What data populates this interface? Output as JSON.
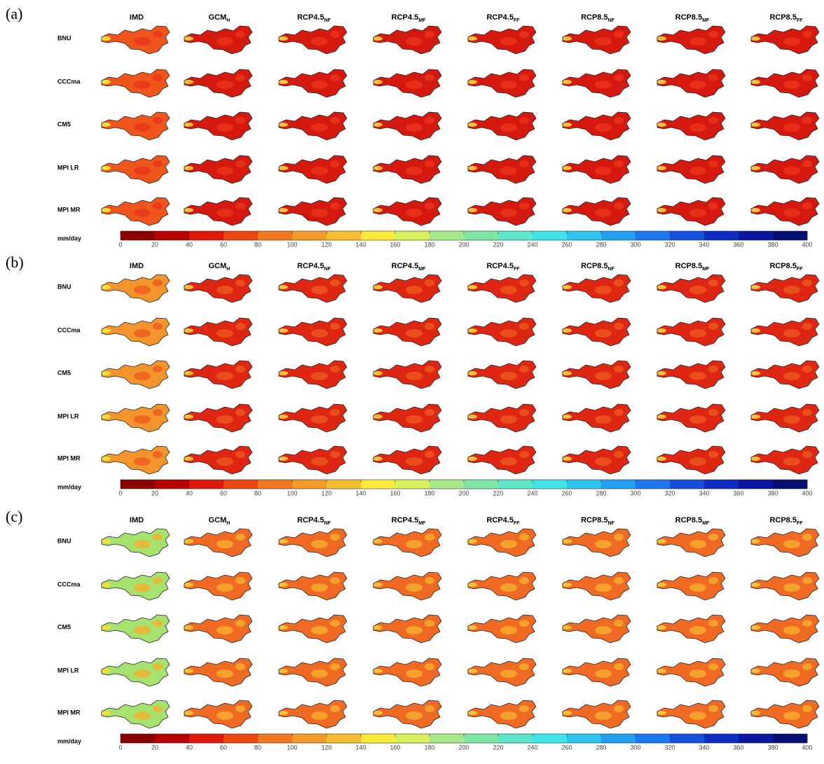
{
  "panels": [
    {
      "label": "(a)",
      "columns": [
        {
          "text": "IMD"
        },
        {
          "text": "GCM",
          "sub": "H"
        },
        {
          "text": "RCP4.5",
          "sub": "NF"
        },
        {
          "text": "RCP4.5",
          "sub": "MF"
        },
        {
          "text": "RCP4.5",
          "sub": "FF"
        },
        {
          "text": "RCP8.5",
          "sub": "NF"
        },
        {
          "text": "RCP8.5",
          "sub": "MF"
        },
        {
          "text": "RCP8.5",
          "sub": "FF"
        }
      ],
      "rows": [
        "BNU",
        "CCCma",
        "CM5",
        "MPI LR",
        "MPI MR"
      ],
      "map_fill": {
        "reference": "#f0561c",
        "models": "#d6190f",
        "spot": "#e8341a"
      },
      "colorbar": {
        "unit": "mm/day",
        "lim": [
          0,
          400
        ],
        "ticks": [
          0,
          20,
          40,
          60,
          80,
          100,
          120,
          140,
          160,
          180,
          200,
          220,
          240,
          260,
          280,
          300,
          320,
          340,
          360,
          380,
          400
        ]
      }
    },
    {
      "label": "(b)",
      "columns": [
        {
          "text": "IMD"
        },
        {
          "text": "GCM",
          "sub": "H"
        },
        {
          "text": "RCP4.5",
          "sub": "NF"
        },
        {
          "text": "RCP4.5",
          "sub": "MF"
        },
        {
          "text": "RCP4.5",
          "sub": "FF"
        },
        {
          "text": "RCP8.5",
          "sub": "NF"
        },
        {
          "text": "RCP8.5",
          "sub": "MF"
        },
        {
          "text": "RCP8.5",
          "sub": "FF"
        }
      ],
      "rows": [
        "BNU",
        "CCCma",
        "CM5",
        "MPI LR",
        "MPI MR"
      ],
      "map_fill": {
        "reference": "#f3952c",
        "models": "#de2613",
        "spot": "#ec5a1e"
      },
      "colorbar": {
        "unit": "mm/day",
        "lim": [
          0,
          400
        ],
        "ticks": [
          0,
          20,
          40,
          60,
          80,
          100,
          120,
          140,
          160,
          180,
          200,
          220,
          240,
          260,
          280,
          300,
          320,
          340,
          360,
          380,
          400
        ]
      }
    },
    {
      "label": "(c)",
      "columns": [
        {
          "text": "IMD"
        },
        {
          "text": "GCM",
          "sub": "H"
        },
        {
          "text": "RCP4.5",
          "sub": "NF"
        },
        {
          "text": "RCP4.5",
          "sub": "MF"
        },
        {
          "text": "RCP4.5",
          "sub": "FF"
        },
        {
          "text": "RCP8.5",
          "sub": "NF"
        },
        {
          "text": "RCP8.5",
          "sub": "MF"
        },
        {
          "text": "RCP8.5",
          "sub": "FF"
        }
      ],
      "rows": [
        "BNU",
        "CCCma",
        "CM5",
        "MPI LR",
        "MPI MR"
      ],
      "map_fill": {
        "reference": "#a6e26e",
        "models": "#f06a24",
        "spot": "#f5b02e"
      },
      "colorbar": {
        "unit": "mm/day",
        "lim": [
          0,
          400
        ],
        "ticks": [
          0,
          20,
          40,
          60,
          80,
          100,
          120,
          140,
          160,
          180,
          200,
          220,
          240,
          260,
          280,
          300,
          320,
          340,
          360,
          380,
          400
        ]
      }
    }
  ],
  "colormap": [
    "#8b0000",
    "#b80000",
    "#e01a0a",
    "#ea4a12",
    "#f07820",
    "#f49a28",
    "#f7bd30",
    "#fde93a",
    "#d8f060",
    "#a6e88a",
    "#7fe6a6",
    "#5ee6c8",
    "#40e4e6",
    "#2fc4ee",
    "#249ef0",
    "#1c78ec",
    "#1450dc",
    "#0e2cc4",
    "#0a16a0",
    "#061070"
  ]
}
